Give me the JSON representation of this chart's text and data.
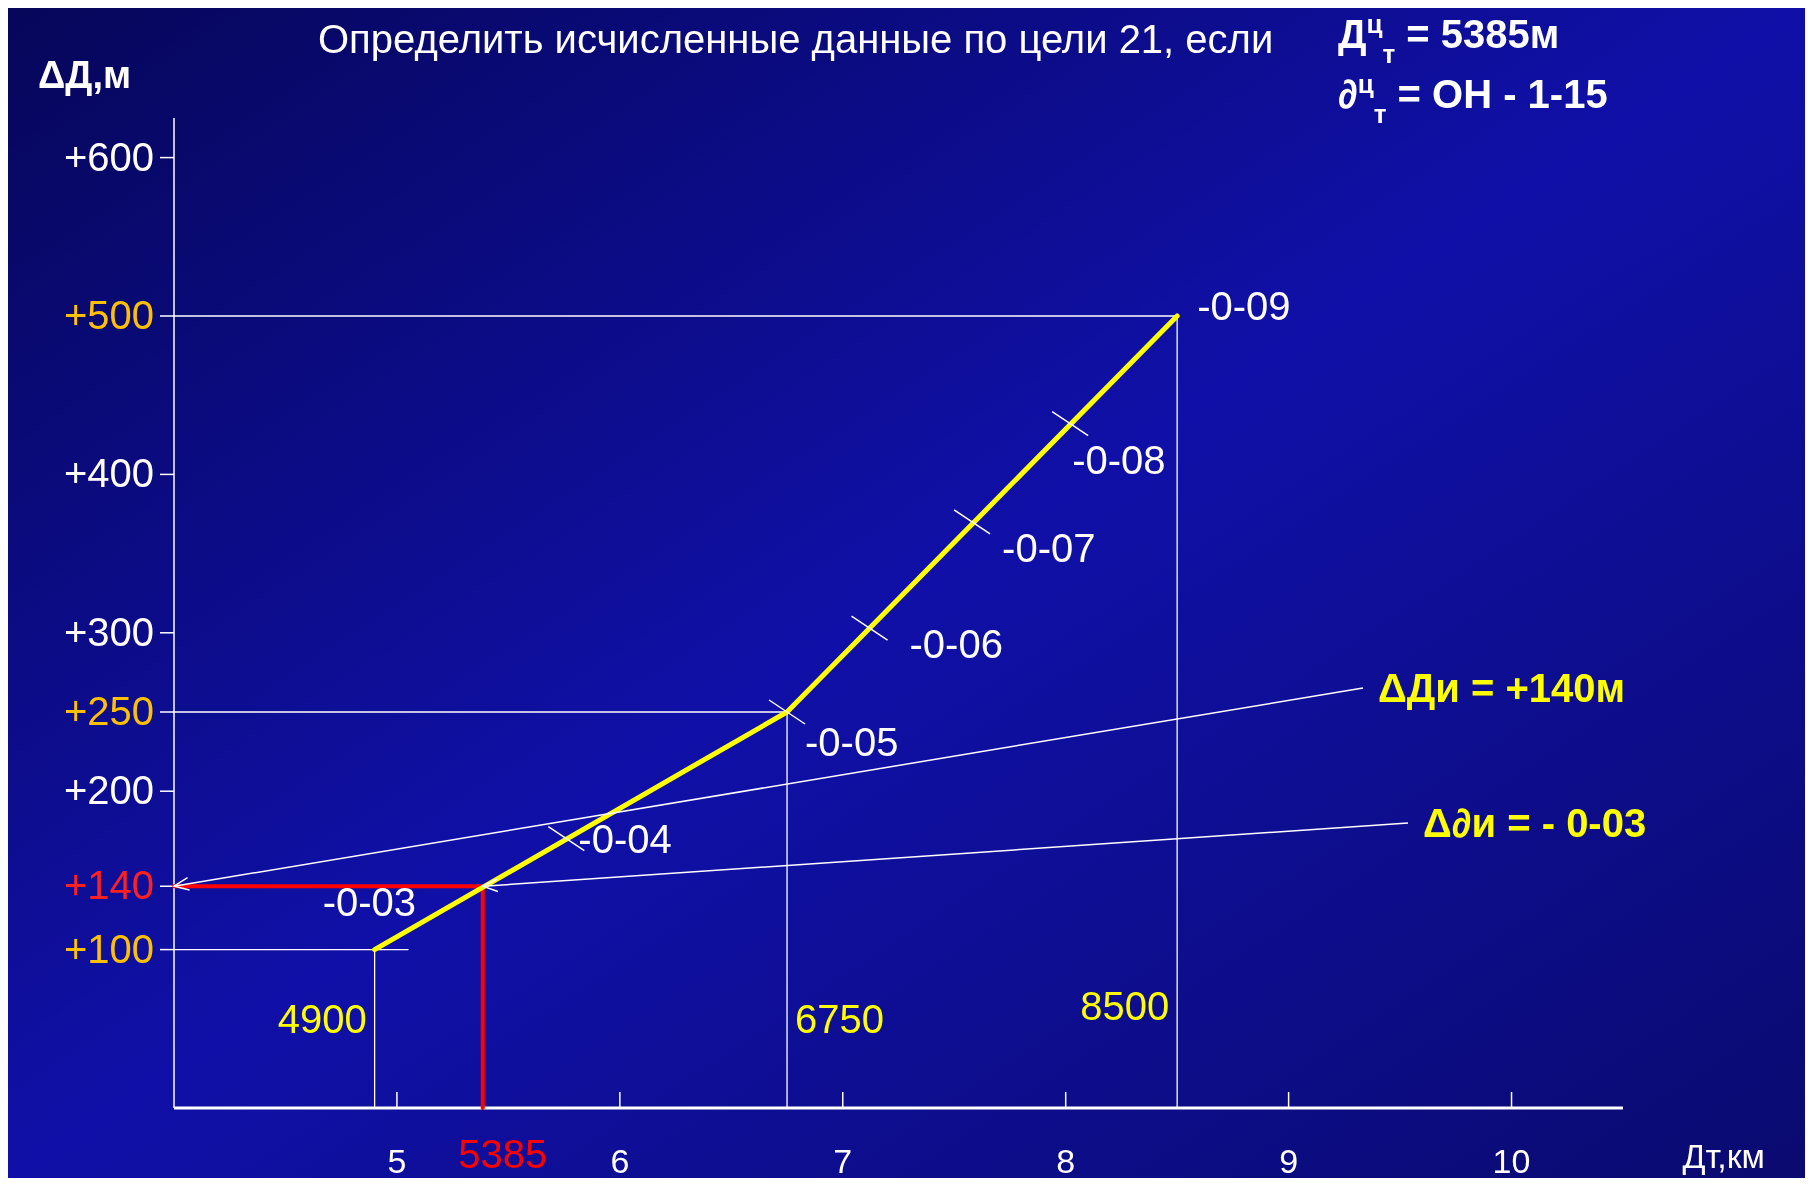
{
  "chart_data": {
    "type": "line",
    "title": "Определить исчисленные данные по цели 21, если",
    "xlabel": "Дт,км",
    "ylabel": "ΔД,м",
    "xlim": [
      4,
      10.5
    ],
    "xticks": [
      5,
      6,
      7,
      8,
      9,
      10
    ],
    "ylim": [
      0,
      625
    ],
    "yticks": [
      {
        "value": 100,
        "label": "+100"
      },
      {
        "value": 140,
        "label": "+140"
      },
      {
        "value": 200,
        "label": "+200"
      },
      {
        "value": 250,
        "label": "+250"
      },
      {
        "value": 300,
        "label": "+300"
      },
      {
        "value": 400,
        "label": "+400"
      },
      {
        "value": 500,
        "label": "+500"
      },
      {
        "value": 600,
        "label": "+600"
      }
    ],
    "grid": false,
    "line_style": "solid",
    "series": [
      {
        "color": "#ffff00",
        "x": [
          4.9,
          6.75,
          8.5
        ],
        "values": [
          100,
          250,
          500
        ]
      },
      {
        "color": "#ffffff",
        "x": [
          4,
          8.5
        ],
        "values": [
          500,
          500
        ]
      },
      {
        "color": "#ffffff",
        "x": [
          8.5,
          8.5
        ],
        "values": [
          500,
          0
        ]
      },
      {
        "color": "#ffffff",
        "x": [
          4,
          6.75
        ],
        "values": [
          250,
          250
        ]
      },
      {
        "color": "#ffffff",
        "x": [
          6.75,
          6.75
        ],
        "values": [
          250,
          0
        ]
      },
      {
        "color": "#ffffff",
        "x": [
          4,
          5.05
        ],
        "values": [
          100,
          100
        ]
      },
      {
        "color": "#ffffff",
        "x": [
          4.9,
          4.9
        ],
        "values": [
          100,
          0
        ]
      },
      {
        "color": "#ff0000",
        "x": [
          4,
          5.385,
          5.385
        ],
        "values": [
          140,
          140,
          0
        ]
      }
    ],
    "annotations": [
      {
        "text": "-0-03",
        "x": 5.385,
        "y": 140
      },
      {
        "text": "-0-04",
        "x": 5.76,
        "y": 170
      },
      {
        "text": "-0-05",
        "x": 6.75,
        "y": 250
      },
      {
        "text": "-0-06",
        "x": 7.12,
        "y": 303
      },
      {
        "text": "-0-07",
        "x": 7.58,
        "y": 370
      },
      {
        "text": "-0-08",
        "x": 8.02,
        "y": 432
      },
      {
        "text": "-0-09",
        "x": 8.5,
        "y": 500
      },
      {
        "text": "4900",
        "x": 4.9,
        "y": 0
      },
      {
        "text": "6750",
        "x": 6.75,
        "y": 0
      },
      {
        "text": "8500",
        "x": 8.5,
        "y": 0
      },
      {
        "text": "5385",
        "x": 5.385,
        "y": 0
      },
      {
        "text": "ΔДи = +140м",
        "x": 4,
        "y": 140
      },
      {
        "text": "Δ∂и = - 0-03",
        "x": 5.385,
        "y": 140
      },
      "Д$^{ц}$$_{т}$ = 5385м",
      "∂$^{ц}$$_{т}$ = ОН - 1-15"
    ]
  }
}
